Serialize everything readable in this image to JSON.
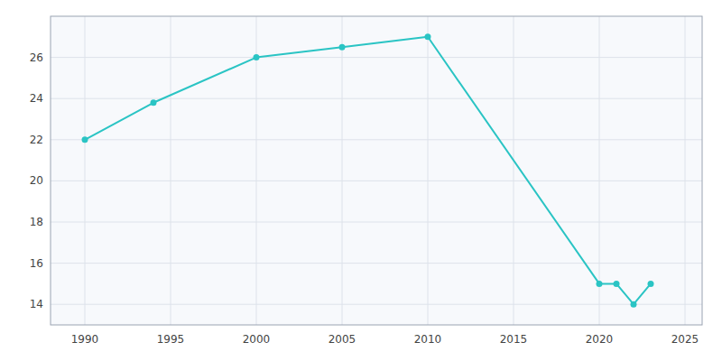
{
  "chart_data": {
    "type": "line",
    "x": [
      1990,
      1994,
      2000,
      2005,
      2010,
      2020,
      2021,
      2022,
      2023
    ],
    "values": [
      22,
      23.8,
      26,
      26.5,
      27,
      15,
      15,
      14,
      15
    ],
    "color": "#2ac4c4",
    "marker": "circle",
    "xlim": [
      1988,
      2026
    ],
    "ylim": [
      13,
      28
    ],
    "xticks": [
      1990,
      1995,
      2000,
      2005,
      2010,
      2015,
      2020,
      2025
    ],
    "yticks": [
      14,
      16,
      18,
      20,
      22,
      24,
      26
    ],
    "grid": true
  }
}
